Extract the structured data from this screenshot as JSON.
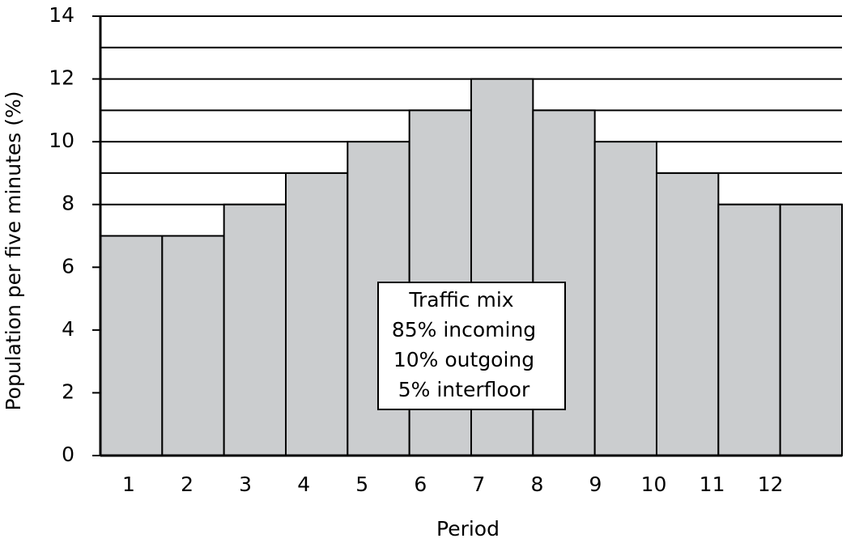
{
  "chart_data": {
    "type": "bar",
    "x_label": "Period",
    "y_label": "Population per five minutes (%)",
    "categories": [
      "1",
      "2",
      "3",
      "4",
      "5",
      "6",
      "7",
      "8",
      "9",
      "10",
      "11",
      "12"
    ],
    "values": [
      7,
      7,
      8,
      9,
      10,
      11,
      12,
      11,
      10,
      9,
      8,
      8
    ],
    "color": "#cbcdcf",
    "ylim": [
      0,
      14
    ],
    "yticks": [
      0,
      2,
      4,
      6,
      8,
      10,
      12,
      14
    ],
    "ygrid": [
      1,
      2,
      3,
      4,
      5,
      6,
      7,
      8,
      9,
      10,
      11,
      12,
      13,
      14
    ],
    "grid": true,
    "annotation": [
      "Traffic mix",
      "85% incoming",
      "10% outgoing",
      "5% interfloor"
    ]
  }
}
